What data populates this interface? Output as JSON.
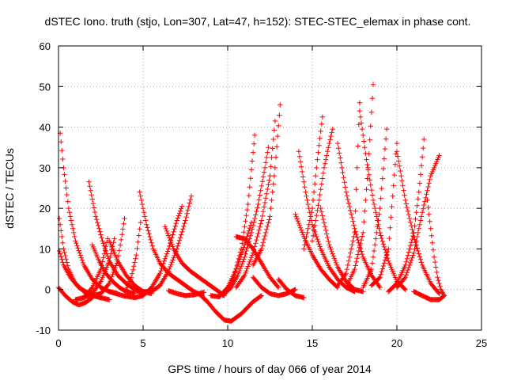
{
  "chart_data": {
    "type": "scatter",
    "title": "dSTEC Iono. truth (stjo, Lon=307, Lat=47, h=152): STEC-STEC_elemax in phase cont.",
    "xlabel": "GPS time / hours of day 066 of year 2014",
    "ylabel": "dSTEC  / TECUs",
    "xlim": [
      0,
      25
    ],
    "ylim": [
      -10,
      60
    ],
    "x_ticks": [
      0,
      5,
      10,
      15,
      20,
      25
    ],
    "y_ticks": [
      -10,
      0,
      10,
      20,
      30,
      40,
      50,
      60
    ],
    "grid": true,
    "marker": "+",
    "color": "#ff0000",
    "arcs": [
      {
        "x": [
          0.0,
          0.4,
          0.8,
          1.2,
          1.6,
          2.0
        ],
        "y": [
          0.5,
          -1.5,
          -3.0,
          -3.8,
          -3.2,
          -2.0
        ]
      },
      {
        "x": [
          0.05,
          0.3,
          0.6,
          1.0,
          1.5,
          2.0,
          2.5
        ],
        "y": [
          17.5,
          10.0,
          5.0,
          1.5,
          -0.5,
          -1.5,
          -2.0
        ]
      },
      {
        "x": [
          0.05,
          0.3,
          0.7,
          1.2,
          1.8,
          2.5,
          3.0
        ],
        "y": [
          9.5,
          6.0,
          3.0,
          0.5,
          -1.0,
          -2.0,
          -2.5
        ]
      },
      {
        "x": [
          0.1,
          0.3,
          0.6,
          1.0,
          1.5,
          2.0,
          2.5,
          3.0,
          3.5
        ],
        "y": [
          38.5,
          30.0,
          20.0,
          12.0,
          6.0,
          2.5,
          0.5,
          -0.5,
          -1.0
        ]
      },
      {
        "x": [
          1.8,
          2.2,
          2.6,
          3.0,
          3.5,
          4.0,
          4.5,
          5.0
        ],
        "y": [
          26.5,
          18.0,
          12.0,
          7.0,
          3.5,
          1.5,
          0.0,
          -1.0
        ]
      },
      {
        "x": [
          1.0,
          1.5,
          2.0,
          2.5,
          2.9
        ],
        "y": [
          -2.5,
          -2.0,
          0.5,
          5.0,
          12.5
        ]
      },
      {
        "x": [
          1.5,
          2.0,
          2.5,
          3.0,
          3.3
        ],
        "y": [
          -2.0,
          -1.0,
          2.0,
          7.0,
          12.5
        ]
      },
      {
        "x": [
          2.0,
          2.5,
          3.0,
          3.5,
          3.9
        ],
        "y": [
          -1.5,
          -1.0,
          1.5,
          7.0,
          17.5
        ]
      },
      {
        "x": [
          2.0,
          2.4,
          2.8,
          3.2,
          3.6,
          4.0,
          4.5
        ],
        "y": [
          11.0,
          7.0,
          4.0,
          2.0,
          0.5,
          -0.5,
          -1.0
        ]
      },
      {
        "x": [
          3.0,
          3.5,
          4.0,
          4.5,
          5.0,
          5.5
        ],
        "y": [
          12.0,
          7.0,
          3.5,
          1.0,
          -0.5,
          -1.0
        ]
      },
      {
        "x": [
          4.0,
          4.3,
          4.6,
          4.85
        ],
        "y": [
          0.0,
          3.0,
          8.5,
          16.5
        ]
      },
      {
        "x": [
          4.8,
          5.2,
          5.6,
          6.0,
          6.5,
          7.0,
          7.5,
          8.0,
          8.5
        ],
        "y": [
          24.0,
          16.0,
          10.0,
          6.5,
          4.0,
          2.5,
          1.0,
          -0.5,
          -1.5
        ]
      },
      {
        "x": [
          3.0,
          3.8,
          4.5,
          5.0,
          5.5,
          6.0,
          6.5,
          7.0,
          7.3
        ],
        "y": [
          -0.5,
          -1.5,
          -2.0,
          -1.5,
          0.5,
          4.0,
          10.0,
          17.0,
          20.5
        ]
      },
      {
        "x": [
          5.0,
          5.5,
          6.0,
          6.5,
          7.0,
          7.5,
          7.85
        ],
        "y": [
          -0.5,
          -0.5,
          1.0,
          4.5,
          10.0,
          17.0,
          23.0
        ]
      },
      {
        "x": [
          6.3,
          6.8,
          7.3,
          7.8,
          8.3,
          8.8,
          9.3,
          9.8
        ],
        "y": [
          15.5,
          10.0,
          6.5,
          4.5,
          3.0,
          1.5,
          0.0,
          -1.5
        ]
      },
      {
        "x": [
          6.5,
          7.0,
          7.5,
          8.0,
          8.6
        ],
        "y": [
          -0.3,
          -1.0,
          -1.5,
          -1.3,
          -0.7
        ]
      },
      {
        "x": [
          8.3,
          8.8,
          9.3,
          9.8,
          10.2,
          10.8,
          11.5,
          12.0
        ],
        "y": [
          -1.0,
          -3.0,
          -5.5,
          -7.5,
          -7.8,
          -6.0,
          -3.0,
          -1.5
        ]
      },
      {
        "x": [
          9.0,
          9.5,
          10.0,
          10.5,
          11.0,
          11.4
        ],
        "y": [
          -1.5,
          -1.8,
          0.5,
          5.0,
          11.0,
          16.5
        ]
      },
      {
        "x": [
          9.5,
          10.0,
          10.4,
          10.8,
          11.2,
          11.6
        ],
        "y": [
          -1.5,
          0.0,
          3.5,
          10.0,
          21.0,
          38.0
        ]
      },
      {
        "x": [
          9.7,
          10.2,
          10.6,
          11.0,
          11.4,
          11.8,
          12.2,
          12.4
        ],
        "y": [
          -1.5,
          0.5,
          3.5,
          8.0,
          14.0,
          21.0,
          30.0,
          35.0
        ]
      },
      {
        "x": [
          10.5,
          11.0,
          11.5,
          12.0,
          12.5,
          12.8
        ],
        "y": [
          0.5,
          3.5,
          9.0,
          17.0,
          28.0,
          41.5
        ]
      },
      {
        "x": [
          11.5,
          12.0,
          12.5,
          12.8,
          13.1
        ],
        "y": [
          6.0,
          10.0,
          18.0,
          30.0,
          45.5
        ]
      },
      {
        "x": [
          10.5,
          11.0,
          11.5,
          12.0,
          12.5,
          13.0
        ],
        "y": [
          13.0,
          12.5,
          10.0,
          6.5,
          3.0,
          0.5
        ]
      },
      {
        "x": [
          11.5,
          12.0,
          12.5,
          13.0,
          13.5,
          14.0
        ],
        "y": [
          3.0,
          0.5,
          -1.0,
          -1.5,
          -1.0,
          0.0
        ]
      },
      {
        "x": [
          13.0,
          13.5,
          14.0,
          14.5
        ],
        "y": [
          2.5,
          0.0,
          -1.5,
          -2.0
        ]
      },
      {
        "x": [
          14.0,
          14.5,
          15.0,
          15.5,
          16.0,
          16.5
        ],
        "y": [
          18.5,
          13.0,
          8.5,
          5.0,
          2.5,
          0.5
        ]
      },
      {
        "x": [
          14.2,
          14.6,
          15.0,
          15.5,
          16.0,
          16.5,
          17.0,
          17.5
        ],
        "y": [
          34.0,
          24.0,
          16.0,
          10.0,
          5.5,
          2.5,
          0.5,
          -0.5
        ]
      },
      {
        "x": [
          14.5,
          15.0,
          15.3,
          15.6
        ],
        "y": [
          10.0,
          20.0,
          32.0,
          42.5
        ]
      },
      {
        "x": [
          15.0,
          15.4,
          15.7,
          16.0,
          16.2
        ],
        "y": [
          12.0,
          22.0,
          30.0,
          36.0,
          39.5
        ]
      },
      {
        "x": [
          15.5,
          16.0,
          16.5,
          17.0,
          17.5,
          18.0
        ],
        "y": [
          20.0,
          11.0,
          5.5,
          2.0,
          0.0,
          -0.5
        ]
      },
      {
        "x": [
          16.5,
          17.0,
          17.5,
          18.0,
          18.5,
          19.0
        ],
        "y": [
          36.0,
          24.0,
          15.0,
          8.0,
          3.5,
          0.5
        ]
      },
      {
        "x": [
          16.5,
          17.0,
          17.5,
          17.8
        ],
        "y": [
          1.0,
          4.0,
          14.0,
          46.0
        ]
      },
      {
        "x": [
          17.0,
          17.5,
          18.0,
          18.3,
          18.6
        ],
        "y": [
          0.5,
          5.0,
          14.0,
          30.0,
          50.5
        ]
      },
      {
        "x": [
          17.8,
          18.2,
          18.6,
          19.0,
          19.5,
          20.0,
          20.5
        ],
        "y": [
          44.0,
          32.0,
          22.0,
          14.0,
          7.0,
          2.0,
          0.0
        ]
      },
      {
        "x": [
          18.0,
          18.5,
          19.0,
          19.4
        ],
        "y": [
          0.5,
          5.0,
          20.0,
          39.5
        ]
      },
      {
        "x": [
          18.5,
          19.0,
          19.5,
          20.0
        ],
        "y": [
          1.0,
          3.0,
          10.0,
          36.0
        ]
      },
      {
        "x": [
          20.0,
          20.5,
          21.0,
          21.5,
          22.0,
          22.5
        ],
        "y": [
          34.0,
          22.0,
          13.0,
          6.0,
          1.5,
          -1.0
        ]
      },
      {
        "x": [
          19.5,
          20.0,
          20.5,
          21.0,
          21.3,
          21.6
        ],
        "y": [
          -0.5,
          1.5,
          6.0,
          14.0,
          24.0,
          37.0
        ]
      },
      {
        "x": [
          20.0,
          20.5,
          21.0,
          21.5,
          22.0,
          22.5
        ],
        "y": [
          0.5,
          3.0,
          9.0,
          19.0,
          28.0,
          33.0
        ]
      },
      {
        "x": [
          21.8,
          22.0,
          22.2,
          22.4,
          22.6,
          22.8
        ],
        "y": [
          22.0,
          15.0,
          8.0,
          3.0,
          0.0,
          -1.5
        ]
      },
      {
        "x": [
          21.0,
          21.5,
          22.0,
          22.5,
          22.8
        ],
        "y": [
          -0.5,
          -1.5,
          -2.5,
          -2.5,
          -1.5
        ]
      }
    ]
  }
}
